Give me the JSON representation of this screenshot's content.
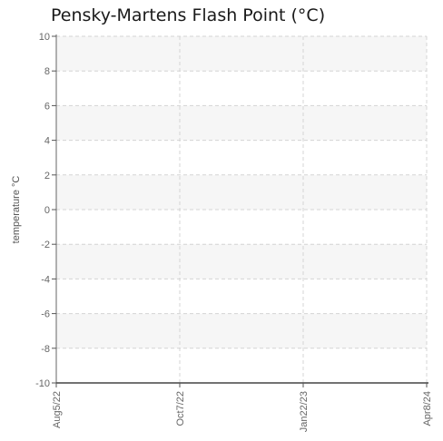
{
  "chart_data": {
    "type": "line",
    "title": "Pensky-Martens Flash Point (°C)",
    "xlabel": "",
    "ylabel": "temperature °C",
    "ylim": [
      -10,
      10
    ],
    "y_ticks": [
      10,
      8,
      6,
      4,
      2,
      0,
      -2,
      -4,
      -6,
      -8,
      -10
    ],
    "x_ticks": [
      "Aug5/22",
      "Oct7/22",
      "Jan22/23",
      "Apr8/24"
    ],
    "series": [],
    "grid": true
  }
}
